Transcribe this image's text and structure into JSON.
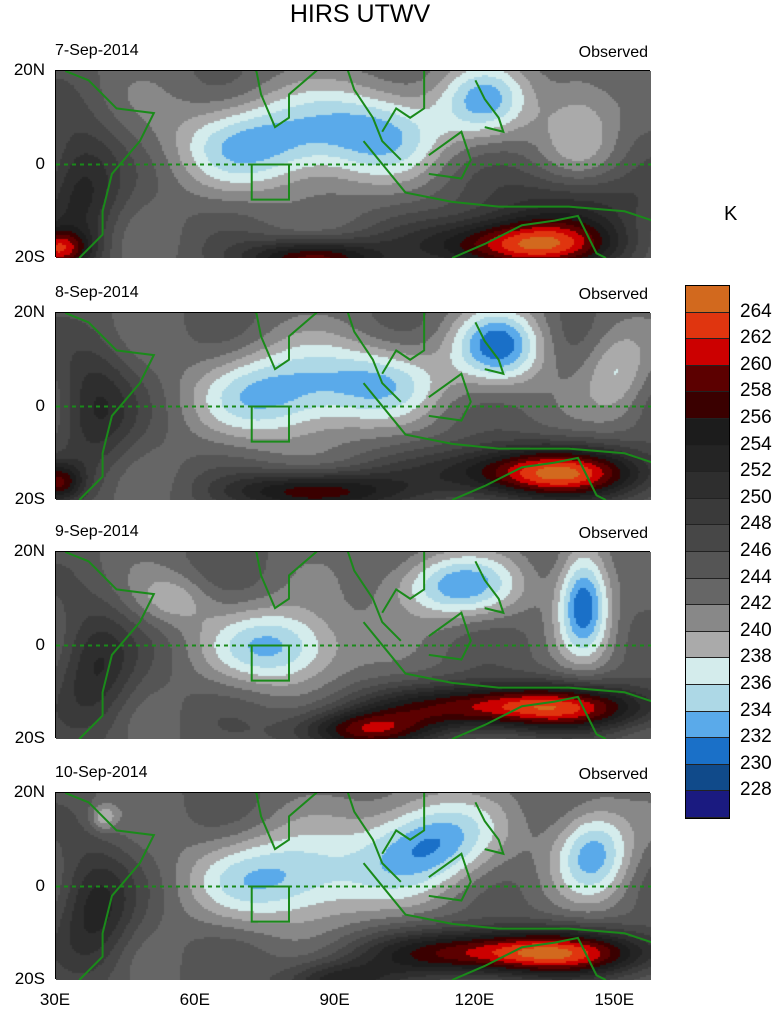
{
  "title": "HIRS UTWV",
  "units": "K",
  "panels": [
    {
      "date": "7-Sep-2014",
      "label": "Observed"
    },
    {
      "date": "8-Sep-2014",
      "label": "Observed"
    },
    {
      "date": "9-Sep-2014",
      "label": "Observed"
    },
    {
      "date": "10-Sep-2014",
      "label": "Observed"
    }
  ],
  "y_ticks": [
    "20N",
    "0",
    "20S"
  ],
  "x_ticks": [
    "30E",
    "60E",
    "90E",
    "120E",
    "150E"
  ],
  "colorbar": {
    "labels": [
      "264",
      "262",
      "260",
      "258",
      "256",
      "254",
      "252",
      "250",
      "248",
      "246",
      "244",
      "242",
      "240",
      "238",
      "236",
      "234",
      "232",
      "230",
      "228"
    ],
    "colors": [
      "#d2691e",
      "#e0350f",
      "#cc0000",
      "#5c0000",
      "#3a0000",
      "#1c1c1c",
      "#242424",
      "#2e2e2e",
      "#3a3a3a",
      "#474747",
      "#555555",
      "#666666",
      "#888888",
      "#aaaaaa",
      "#d4ecec",
      "#add8e6",
      "#5aaaea",
      "#1a70c8",
      "#104a8a",
      "#1a1a80"
    ]
  }
}
